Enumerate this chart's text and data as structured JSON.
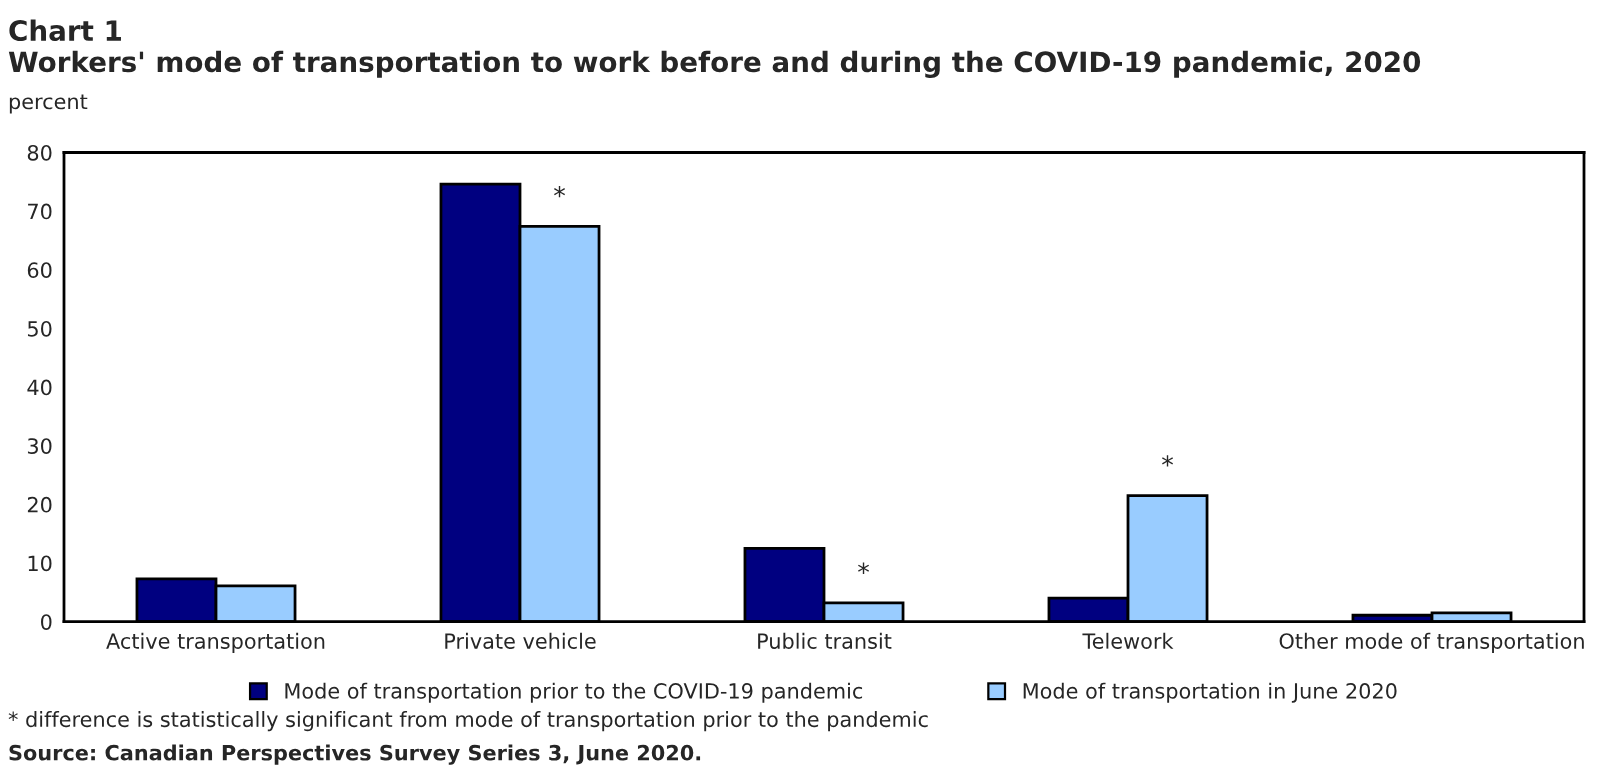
{
  "chart_data": {
    "type": "bar",
    "title": "Chart 1",
    "subtitle": "Workers' mode of transportation to work before and during the COVID-19 pandemic, 2020",
    "ylabel": "percent",
    "categories": [
      "Active transportation",
      "Private vehicle",
      "Public transit",
      "Telework",
      "Other mode of transportation"
    ],
    "series": [
      {
        "name": "Mode of transportation prior to the COVID-19 pandemic",
        "color": "#000080",
        "values": [
          7.3,
          74.6,
          12.5,
          4.0,
          1.1
        ]
      },
      {
        "name": "Mode of transportation in June 2020",
        "color": "#99ccff",
        "values": [
          6.1,
          67.4,
          3.2,
          21.5,
          1.5
        ]
      }
    ],
    "ylim": [
      0,
      80
    ],
    "yticks": [
      0,
      10,
      20,
      30,
      40,
      50,
      60,
      70,
      80
    ],
    "grid": false,
    "legend": "bottom",
    "annotations": [
      {
        "text": "*",
        "x": "Private vehicle",
        "y": 67.4
      },
      {
        "text": "*",
        "x": "Public transit",
        "y": 3.2
      },
      {
        "text": "*",
        "x": "Telework",
        "y": 21.5
      },
      "* difference is statistically significant from mode of transportation prior to the pandemic",
      "Source: Canadian Perspectives Survey Series 3, June 2020."
    ]
  }
}
